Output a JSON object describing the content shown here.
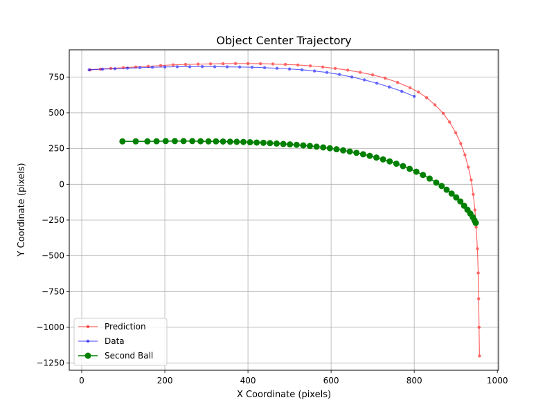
{
  "chart_data": {
    "type": "line",
    "title": "Object Center Trajectory",
    "xlabel": "X Coordinate (pixels)",
    "ylabel": "Y Coordinate (pixels)",
    "xlim": [
      -30,
      1003
    ],
    "ylim": [
      -1300,
      940
    ],
    "xticks": [
      0,
      200,
      400,
      600,
      800,
      1000
    ],
    "xtick_labels": [
      "0",
      "200",
      "400",
      "600",
      "800",
      "1000"
    ],
    "yticks": [
      -1250,
      -1000,
      -750,
      -500,
      -250,
      0,
      250,
      500,
      750
    ],
    "ytick_labels": [
      "−1250",
      "−1000",
      "−750",
      "−500",
      "−250",
      "0",
      "250",
      "500",
      "750"
    ],
    "grid": true,
    "legend_position": "lower-left",
    "series": [
      {
        "name": "Prediction",
        "color": "#ff0000",
        "marker": "small-dot",
        "alpha": 0.6,
        "x": [
          20,
          45,
          70,
          100,
          130,
          160,
          190,
          220,
          250,
          280,
          310,
          340,
          370,
          400,
          430,
          460,
          490,
          520,
          550,
          580,
          610,
          640,
          670,
          700,
          730,
          760,
          790,
          810,
          830,
          850,
          870,
          885,
          900,
          912,
          922,
          930,
          937,
          942,
          946,
          949,
          952,
          954,
          955,
          956,
          957
        ],
        "y": [
          800,
          805,
          810,
          815,
          820,
          825,
          830,
          835,
          838,
          840,
          842,
          843,
          844,
          844,
          843,
          841,
          838,
          834,
          828,
          820,
          810,
          798,
          783,
          765,
          742,
          712,
          675,
          645,
          605,
          555,
          495,
          435,
          360,
          285,
          205,
          120,
          30,
          -70,
          -180,
          -300,
          -450,
          -620,
          -800,
          -1000,
          -1200
        ]
      },
      {
        "name": "Data",
        "color": "#0000ff",
        "marker": "small-dot",
        "alpha": 0.6,
        "x": [
          18,
          50,
          80,
          110,
          140,
          170,
          200,
          230,
          260,
          290,
          320,
          350,
          380,
          410,
          440,
          470,
          500,
          530,
          560,
          590,
          620,
          650,
          680,
          710,
          740,
          770,
          800
        ],
        "y": [
          800,
          805,
          808,
          812,
          815,
          818,
          820,
          822,
          822,
          823,
          822,
          821,
          820,
          818,
          815,
          811,
          806,
          800,
          792,
          782,
          768,
          750,
          730,
          707,
          680,
          650,
          615
        ]
      },
      {
        "name": "Second Ball",
        "color": "#008000",
        "marker": "large-dot",
        "alpha": 1.0,
        "x": [
          98,
          130,
          158,
          180,
          202,
          224,
          245,
          266,
          286,
          305,
          323,
          340,
          357,
          373,
          389,
          405,
          421,
          437,
          453,
          469,
          485,
          501,
          517,
          533,
          549,
          565,
          581,
          597,
          613,
          629,
          645,
          661,
          677,
          693,
          709,
          725,
          741,
          757,
          773,
          789,
          805,
          821,
          837,
          853,
          866,
          878,
          890,
          901,
          911,
          920,
          928,
          935,
          941,
          945,
          948
        ],
        "y": [
          300,
          300,
          300,
          301,
          302,
          302,
          302,
          302,
          301,
          300,
          300,
          299,
          298,
          297,
          296,
          294,
          292,
          290,
          288,
          285,
          282,
          279,
          276,
          272,
          268,
          263,
          258,
          252,
          245,
          237,
          229,
          220,
          210,
          199,
          187,
          174,
          160,
          144,
          127,
          108,
          88,
          65,
          40,
          12,
          -12,
          -38,
          -65,
          -92,
          -120,
          -150,
          -178,
          -205,
          -230,
          -252,
          -270
        ]
      }
    ]
  }
}
